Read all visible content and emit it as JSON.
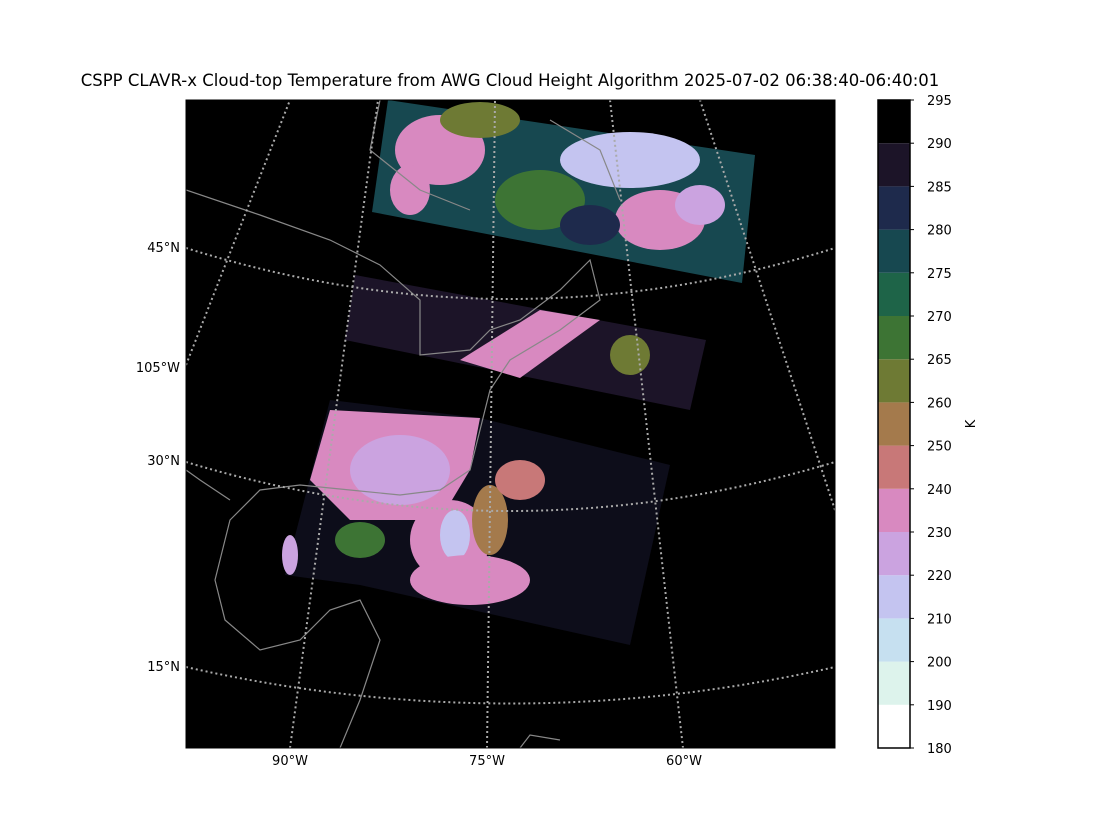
{
  "title": "CSPP CLAVR-x Cloud-top Temperature from AWG Cloud Height Algorithm 2025-07-02 06:38:40-06:40:01",
  "map": {
    "left_labels": [
      "45°N",
      "105°W",
      "30°N",
      "15°N"
    ],
    "bottom_labels": [
      "90°W",
      "75°W",
      "60°W"
    ]
  },
  "colorbar": {
    "label": "K",
    "ticks": [
      180,
      190,
      200,
      210,
      220,
      230,
      240,
      250,
      260,
      265,
      270,
      275,
      280,
      285,
      290,
      295
    ],
    "colors": [
      "#ffffff",
      "#ddf3ec",
      "#c6e0f0",
      "#c4c4f0",
      "#cba3e0",
      "#d889c0",
      "#c87878",
      "#a47a4c",
      "#6e7a34",
      "#3d7434",
      "#1e6448",
      "#174850",
      "#1e2a4c",
      "#1c1428",
      "#000000"
    ]
  }
}
